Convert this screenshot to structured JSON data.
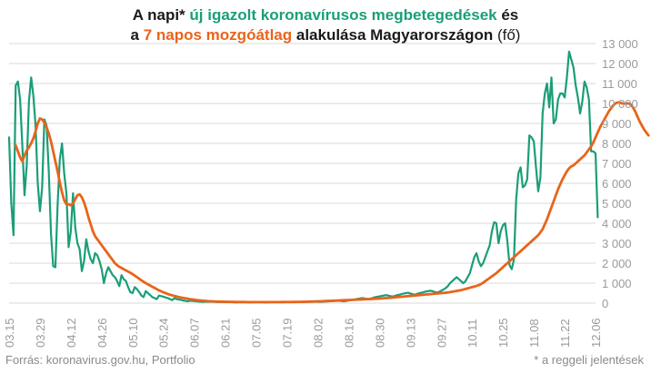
{
  "title": {
    "line1_part1": "A napi* ",
    "line1_highlight": "új igazolt koronavírusos megbetegedések",
    "line1_part2": " és",
    "line2_part1": "a ",
    "line2_highlight": "7 napos mozgóátlag",
    "line2_part2": " alakulása Magyarországon",
    "line2_unit": " (fő)"
  },
  "footer": {
    "source": "Forrás: koronavirus.gov.hu, Portfolio",
    "note": "* a reggeli jelentések"
  },
  "colors": {
    "daily": "#1a9e78",
    "average": "#e8641b",
    "grid": "#d9d9d9",
    "tick_text": "#9a9a9a"
  },
  "chart_data": {
    "type": "line",
    "title": "A napi* új igazolt koronavírusos megbetegedések és a 7 napos mozgóátlag alakulása Magyarországon (fő)",
    "x_tick_labels": [
      "03.15",
      "03.29",
      "04.12",
      "04.26",
      "05.10",
      "05.24",
      "06.07",
      "06.21",
      "07.05",
      "07.19",
      "08.02",
      "08.16",
      "08.30",
      "09.13",
      "09.27",
      "10.11",
      "10.25",
      "11.08",
      "11.22",
      "12.06"
    ],
    "y_tick_labels": [
      "0",
      "1 000",
      "2 000",
      "3 000",
      "4 000",
      "5 000",
      "6 000",
      "7 000",
      "8 000",
      "9 000",
      "10 000",
      "11 000",
      "12 000",
      "13 000"
    ],
    "ylim": [
      0,
      13000
    ],
    "x_start": "2021-03-15",
    "grid": true,
    "series": [
      {
        "name": "új igazolt koronavírusos megbetegedések",
        "color": "#1a9e78",
        "start_date": "2021-03-15",
        "values": [
          8300,
          5000,
          3400,
          10900,
          11100,
          10200,
          7900,
          5400,
          6900,
          10100,
          11300,
          10400,
          8900,
          6000,
          4600,
          5800,
          9200,
          8900,
          6600,
          3500,
          1850,
          1800,
          4900,
          7200,
          8000,
          6500,
          5500,
          2800,
          3600,
          5500,
          3800,
          3000,
          2700,
          1600,
          2100,
          3200,
          2600,
          2200,
          2000,
          2500,
          2400,
          2100,
          1700,
          1000,
          1500,
          1800,
          1600,
          1400,
          1300,
          1100,
          850,
          1400,
          1200,
          1100,
          800,
          550,
          500,
          800,
          700,
          550,
          380,
          300,
          600,
          500,
          400,
          300,
          250,
          200,
          380,
          350,
          320,
          280,
          250,
          200,
          150,
          250,
          200,
          180,
          160,
          130,
          110,
          90,
          120,
          110,
          100,
          90,
          80,
          70,
          60,
          70,
          80,
          75,
          70,
          65,
          60,
          55,
          50,
          55,
          60,
          60,
          55,
          50,
          45,
          40,
          45,
          50,
          55,
          50,
          45,
          40,
          38,
          45,
          50,
          48,
          45,
          42,
          40,
          38,
          45,
          50,
          52,
          55,
          50,
          48,
          45,
          50,
          52,
          55,
          58,
          60,
          55,
          52,
          50,
          55,
          58,
          60,
          65,
          70,
          75,
          70,
          65,
          60,
          70,
          80,
          85,
          90,
          95,
          100,
          110,
          120,
          110,
          100,
          90,
          110,
          130,
          150,
          170,
          190,
          210,
          230,
          250,
          240,
          220,
          200,
          230,
          260,
          300,
          320,
          340,
          360,
          380,
          400,
          380,
          350,
          330,
          360,
          400,
          420,
          450,
          480,
          500,
          520,
          480,
          450,
          420,
          460,
          500,
          520,
          550,
          580,
          600,
          620,
          600,
          560,
          530,
          560,
          620,
          680,
          750,
          850,
          1000,
          1100,
          1200,
          1300,
          1200,
          1100,
          1000,
          1100,
          1300,
          1500,
          1900,
          2300,
          2500,
          2100,
          1850,
          2000,
          2300,
          2600,
          2900,
          3600,
          4050,
          4000,
          3000,
          3600,
          3900,
          4000,
          3100,
          1900,
          1700,
          2200,
          5200,
          6500,
          6800,
          5800,
          5900,
          6200,
          8400,
          8300,
          8100,
          6800,
          5600,
          6300,
          9500,
          10500,
          11000,
          9800,
          11300,
          9000,
          9200,
          10200,
          10500,
          10500,
          10300,
          11300,
          12600,
          12200,
          11800,
          10900,
          10300,
          9500,
          10100,
          11100,
          10800,
          10200,
          7600,
          7600,
          7500,
          4300
        ]
      },
      {
        "name": "7 napos mozgóátlag",
        "color": "#e8641b",
        "start_date": "2021-03-18",
        "values": [
          7900,
          7600,
          7300,
          7100,
          7400,
          7650,
          7800,
          8000,
          8250,
          8600,
          9000,
          9250,
          9200,
          9050,
          8800,
          8500,
          8100,
          7600,
          7100,
          6600,
          6050,
          5550,
          5150,
          4950,
          4950,
          4900,
          5000,
          5200,
          5400,
          5450,
          5300,
          5050,
          4700,
          4300,
          3950,
          3600,
          3350,
          3200,
          3050,
          2900,
          2750,
          2600,
          2450,
          2300,
          2150,
          2000,
          1900,
          1820,
          1760,
          1700,
          1640,
          1580,
          1520,
          1450,
          1380,
          1300,
          1220,
          1140,
          1070,
          1000,
          940,
          880,
          820,
          760,
          700,
          640,
          590,
          540,
          500,
          460,
          420,
          390,
          360,
          330,
          300,
          280,
          260,
          240,
          220,
          200,
          185,
          170,
          155,
          140,
          130,
          120,
          110,
          100,
          95,
          90,
          85,
          80,
          75,
          72,
          70,
          68,
          66,
          64,
          62,
          60,
          58,
          56,
          55,
          54,
          53,
          52,
          51,
          50,
          50,
          50,
          50,
          50,
          50,
          50,
          50,
          50,
          50,
          50,
          51,
          52,
          53,
          54,
          55,
          56,
          57,
          58,
          59,
          60,
          62,
          64,
          66,
          68,
          70,
          73,
          76,
          80,
          84,
          88,
          92,
          96,
          100,
          105,
          110,
          115,
          120,
          125,
          130,
          135,
          140,
          145,
          150,
          155,
          160,
          165,
          170,
          175,
          180,
          185,
          190,
          195,
          200,
          205,
          210,
          215,
          220,
          228,
          236,
          244,
          252,
          260,
          270,
          280,
          290,
          300,
          310,
          320,
          330,
          340,
          350,
          360,
          370,
          380,
          390,
          400,
          410,
          420,
          430,
          440,
          450,
          460,
          470,
          480,
          490,
          500,
          510,
          520,
          535,
          550,
          570,
          590,
          610,
          630,
          650,
          680,
          710,
          740,
          770,
          800,
          830,
          860,
          900,
          950,
          1020,
          1100,
          1180,
          1260,
          1340,
          1420,
          1500,
          1600,
          1700,
          1800,
          1900,
          2000,
          2100,
          2200,
          2300,
          2400,
          2500,
          2600,
          2700,
          2800,
          2900,
          3000,
          3100,
          3200,
          3300,
          3400,
          3550,
          3700,
          3950,
          4200,
          4500,
          4800,
          5100,
          5400,
          5700,
          5950,
          6200,
          6400,
          6600,
          6750,
          6850,
          6900,
          7000,
          7100,
          7200,
          7300,
          7400,
          7550,
          7700,
          7850,
          8050,
          8300,
          8550,
          8800,
          9000,
          9200,
          9400,
          9600,
          9750,
          9900,
          10000,
          10050,
          10050,
          10000,
          10000,
          10000,
          10000,
          9950,
          9800,
          9600,
          9350,
          9100,
          8900,
          8700,
          8550,
          8400
        ]
      }
    ]
  }
}
